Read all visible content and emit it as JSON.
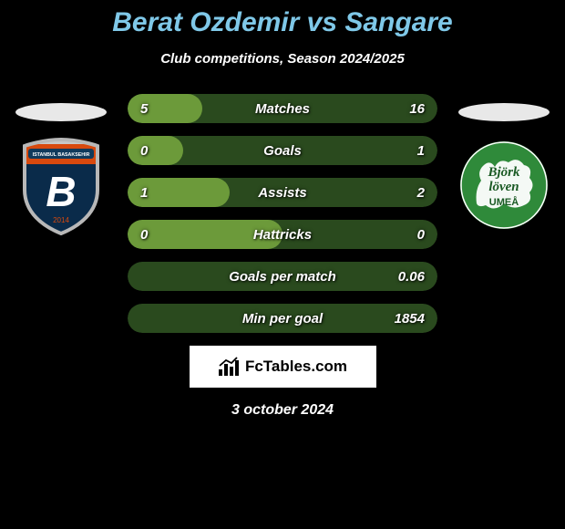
{
  "title": "Berat Ozdemir vs Sangare",
  "subtitle": "Club competitions, Season 2024/2025",
  "date": "3 october 2024",
  "footer_brand": "FcTables.com",
  "left_badge": {
    "ellipse_color": "#e8e8e8",
    "shield_top": "#d8490e",
    "shield_bottom": "#0a2b4a",
    "border_color": "#c8c8c8",
    "letter": "B",
    "letter_color": "#ffffff",
    "banner_text": "ISTANBUL BASAKSEHIR",
    "banner_bg": "#103a5c"
  },
  "right_badge": {
    "ellipse_color": "#e8e8e8",
    "circle_color": "#2f8a3a",
    "inner_color": "#ffffff",
    "text1": "Björk",
    "text2": "löven",
    "text3": "UMEÅ"
  },
  "bar_colors": {
    "bg": "#2a4a1e",
    "fill": "#6c9a3a"
  },
  "stats": [
    {
      "label": "Matches",
      "left_val": "5",
      "right_val": "16",
      "fill_left_pct": 24,
      "fill_right_pct": 0
    },
    {
      "label": "Goals",
      "left_val": "0",
      "right_val": "1",
      "fill_left_pct": 18,
      "fill_right_pct": 0
    },
    {
      "label": "Assists",
      "left_val": "1",
      "right_val": "2",
      "fill_left_pct": 33,
      "fill_right_pct": 0
    },
    {
      "label": "Hattricks",
      "left_val": "0",
      "right_val": "0",
      "fill_left_pct": 50,
      "fill_right_pct": 0
    },
    {
      "label": "Goals per match",
      "left_val": "",
      "right_val": "0.06",
      "fill_left_pct": 0,
      "fill_right_pct": 0
    },
    {
      "label": "Min per goal",
      "left_val": "",
      "right_val": "1854",
      "fill_left_pct": 0,
      "fill_right_pct": 0
    }
  ]
}
